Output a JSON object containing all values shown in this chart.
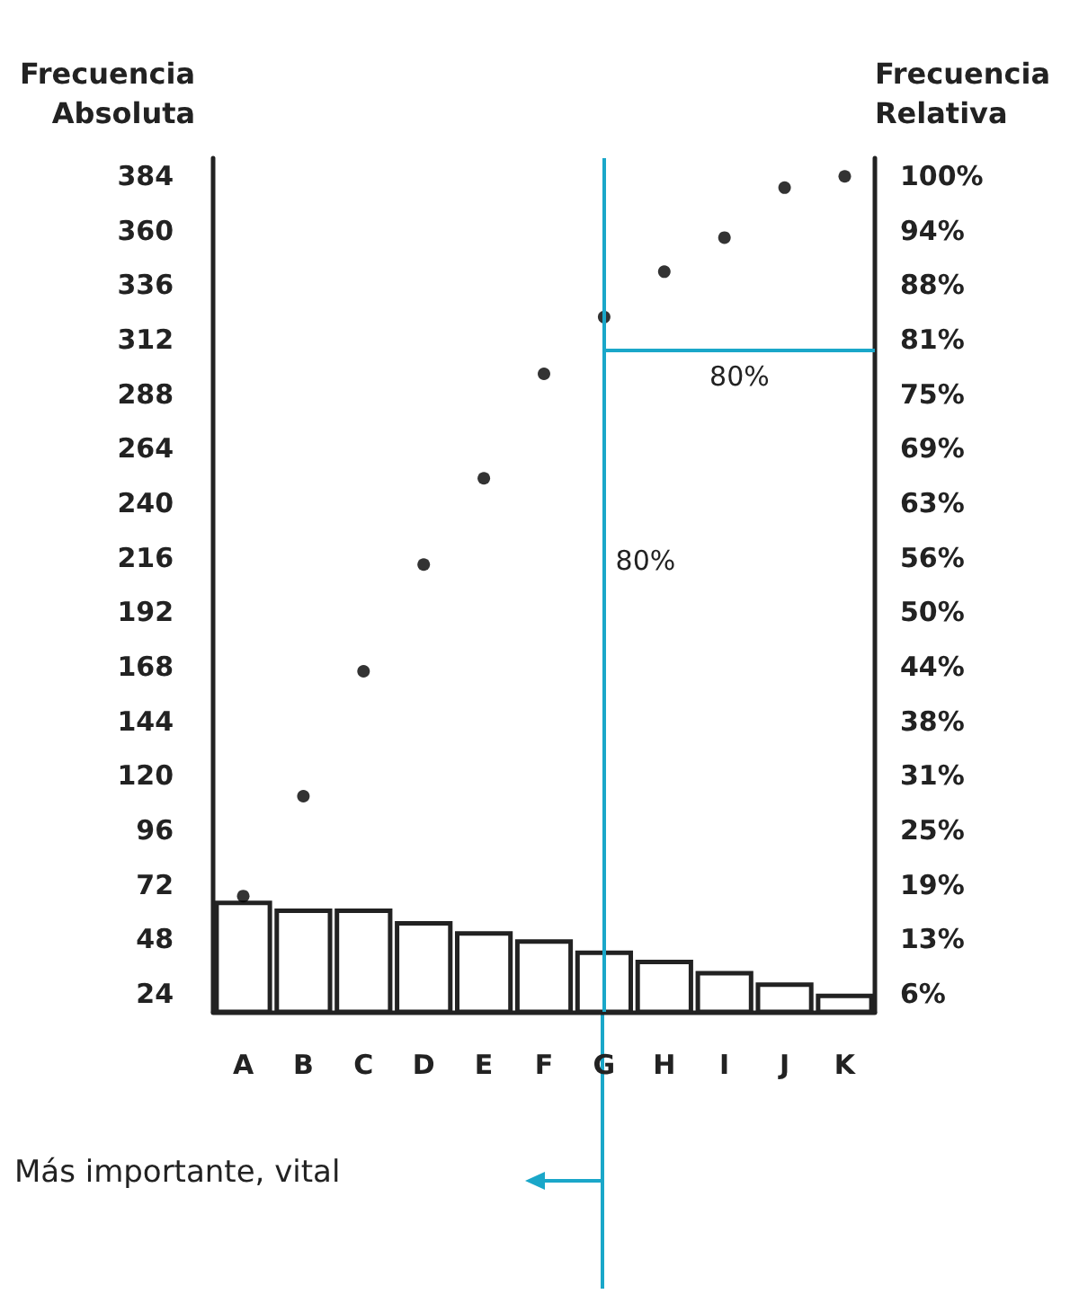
{
  "chart_data": {
    "type": "bar",
    "ylabel": "Frecuencia\nAbsoluta",
    "y2label": "Frecuencia\nRelativa",
    "categories": [
      "A",
      "B",
      "C",
      "D",
      "E",
      "F",
      "G",
      "H",
      "I",
      "J",
      "K"
    ],
    "series": [
      {
        "color": "#ffffff",
        "values": [
          65,
          61.5,
          61.5,
          56,
          51.5,
          48,
          43,
          39,
          34,
          29,
          24
        ]
      },
      {
        "type": "scatter",
        "color": "#000000",
        "marker": "circle",
        "values": [
          67,
          111,
          166,
          213,
          251,
          297,
          322,
          342,
          357,
          379,
          384
        ]
      }
    ],
    "ylim": [
      16,
      392
    ],
    "yticks": [
      24,
      48,
      72,
      96,
      120,
      144,
      168,
      192,
      216,
      240,
      264,
      288,
      312,
      336,
      360,
      384
    ],
    "y2lim": [
      4.17,
      102.08
    ],
    "y2ticks": [
      {
        "value": 6.25,
        "label": "6%"
      },
      {
        "value": 12.5,
        "label": "13%"
      },
      {
        "value": 18.75,
        "label": "19%"
      },
      {
        "value": 25,
        "label": "25%"
      },
      {
        "value": 31.25,
        "label": "31%"
      },
      {
        "value": 37.5,
        "label": "38%"
      },
      {
        "value": 43.75,
        "label": "44%"
      },
      {
        "value": 50,
        "label": "50%"
      },
      {
        "value": 56.25,
        "label": "56%"
      },
      {
        "value": 62.5,
        "label": "63%"
      },
      {
        "value": 68.75,
        "label": "69%"
      },
      {
        "value": 75,
        "label": "75%"
      },
      {
        "value": 81.25,
        "label": "81%"
      },
      {
        "value": 87.5,
        "label": "88%"
      },
      {
        "value": 93.75,
        "label": "94%"
      },
      {
        "value": 100,
        "label": "100%"
      }
    ],
    "ref_lines": [
      {
        "axis": "x",
        "value": "G",
        "label": "80%",
        "color": "#1aa7c9"
      },
      {
        "axis": "y2",
        "value": 80,
        "label": "80%",
        "color": "#1aa7c9"
      }
    ],
    "annotations": [
      "Más importante, vital"
    ],
    "grid": false
  }
}
